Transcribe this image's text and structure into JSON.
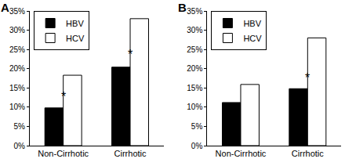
{
  "chart_data": [
    {
      "type": "bar",
      "title": "A",
      "categories": [
        "Non-Cirrhotic",
        "Cirrhotic"
      ],
      "series": [
        {
          "name": "HBV",
          "color": "#000000",
          "values": [
            9.8,
            20.4
          ]
        },
        {
          "name": "HCV",
          "color": "#ffffff",
          "values": [
            18.3,
            33.0
          ]
        }
      ],
      "ylim": [
        0,
        35
      ],
      "yticks": [
        {
          "value": 0,
          "label": "0%"
        },
        {
          "value": 5,
          "label": "5%"
        },
        {
          "value": 10,
          "label": "10%"
        },
        {
          "value": 15,
          "label": "15%"
        },
        {
          "value": 20,
          "label": "20%"
        },
        {
          "value": 25,
          "label": "25%"
        },
        {
          "value": 30,
          "label": "30%"
        },
        {
          "value": 35,
          "label": "35%"
        }
      ],
      "grid": false,
      "legend": "top-left",
      "annotations": [
        {
          "text": "*",
          "x": "Non-Cirrhotic",
          "y": 10.5
        },
        {
          "text": "*",
          "x": "Cirrhotic",
          "y": 21.5
        }
      ]
    },
    {
      "type": "bar",
      "title": "B",
      "categories": [
        "Non-Cirrhotic",
        "Cirrhotic"
      ],
      "series": [
        {
          "name": "HBV",
          "color": "#000000",
          "values": [
            11.2,
            14.8
          ]
        },
        {
          "name": "HCV",
          "color": "#ffffff",
          "values": [
            15.9,
            28.0
          ]
        }
      ],
      "ylim": [
        0,
        35
      ],
      "yticks": [
        {
          "value": 0,
          "label": "0%"
        },
        {
          "value": 5,
          "label": "5%"
        },
        {
          "value": 10,
          "label": "10%"
        },
        {
          "value": 15,
          "label": "15%"
        },
        {
          "value": 20,
          "label": "20%"
        },
        {
          "value": 25,
          "label": "25%"
        },
        {
          "value": 30,
          "label": "30%"
        },
        {
          "value": 35,
          "label": "35%"
        }
      ],
      "grid": false,
      "legend": "top-left",
      "annotations": [
        {
          "text": "*",
          "x": "Cirrhotic",
          "y": 15.5
        }
      ]
    }
  ]
}
